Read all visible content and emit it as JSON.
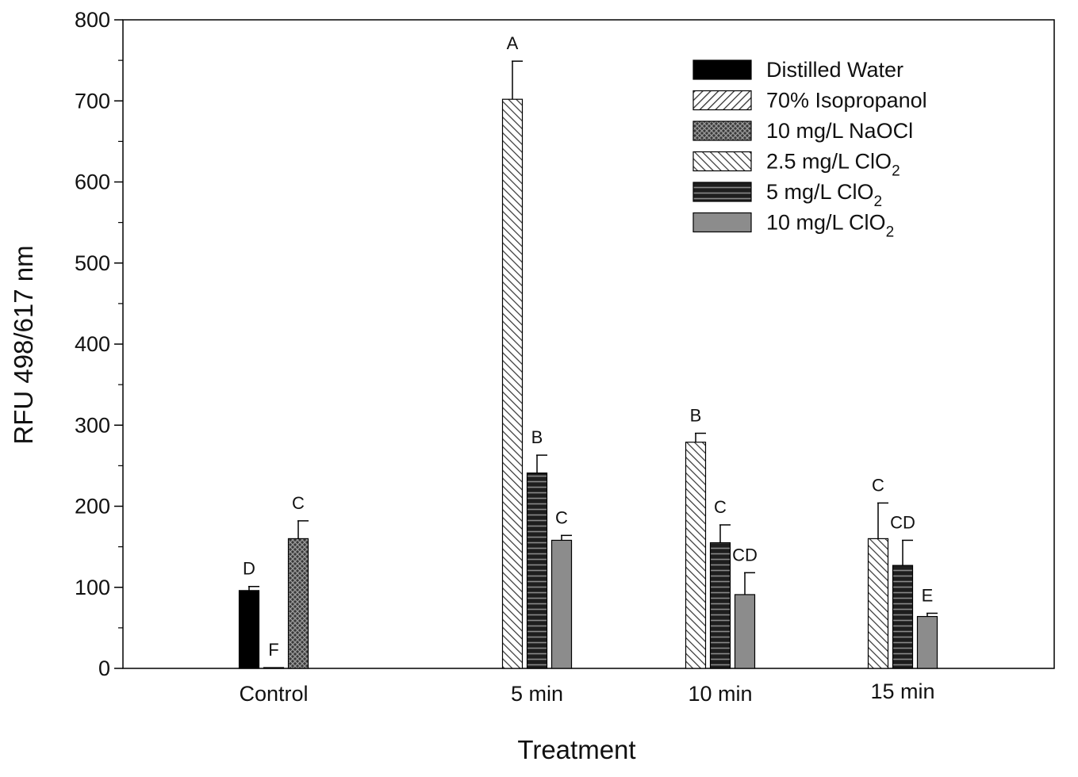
{
  "chart_data": {
    "type": "bar",
    "xlabel": "Treatment",
    "ylabel": "RFU 498/617 nm",
    "ylim": [
      0,
      800
    ],
    "yticks": [
      0,
      100,
      200,
      300,
      400,
      500,
      600,
      700,
      800
    ],
    "grid": false,
    "legend_position": "top-right",
    "categories": [
      "Control",
      "5 min",
      "10 min",
      "15 min"
    ],
    "series": [
      {
        "name": "Distilled Water",
        "legend_main": "Distilled Water",
        "legend_sub": "",
        "pattern": "solid-black",
        "values": [
          96,
          null,
          null,
          null
        ],
        "errors": [
          5,
          null,
          null,
          null
        ],
        "letters": [
          "D",
          null,
          null,
          null
        ]
      },
      {
        "name": "70% Isopropanol",
        "legend_main": "70% Isopropanol",
        "legend_sub": "",
        "pattern": "diag-fwd",
        "values": [
          1,
          null,
          null,
          null
        ],
        "errors": [
          0,
          null,
          null,
          null
        ],
        "letters": [
          "F",
          null,
          null,
          null
        ]
      },
      {
        "name": "10 mg/L NaOCl",
        "legend_main": "10 mg/L NaOCl",
        "legend_sub": "",
        "pattern": "crosshatch",
        "values": [
          160,
          null,
          null,
          null
        ],
        "errors": [
          22,
          null,
          null,
          null
        ],
        "letters": [
          "C",
          null,
          null,
          null
        ]
      },
      {
        "name": "2.5 mg/L ClO2",
        "legend_main": "2.5 mg/L ClO",
        "legend_sub": "2",
        "pattern": "diag-back",
        "values": [
          null,
          702,
          279,
          160
        ],
        "errors": [
          null,
          47,
          11,
          44
        ],
        "letters": [
          null,
          "A",
          "B",
          "C"
        ]
      },
      {
        "name": "5 mg/L ClO2",
        "legend_main": "5 mg/L ClO",
        "legend_sub": "2",
        "pattern": "horizontal",
        "values": [
          null,
          241,
          155,
          127
        ],
        "errors": [
          null,
          22,
          22,
          31
        ],
        "letters": [
          null,
          "B",
          "C",
          "CD"
        ]
      },
      {
        "name": "10 mg/L ClO2",
        "legend_main": "10 mg/L ClO",
        "legend_sub": "2",
        "pattern": "solid-gray",
        "values": [
          null,
          158,
          91,
          64
        ],
        "errors": [
          null,
          6,
          27,
          4
        ],
        "letters": [
          null,
          "C",
          "CD",
          "E"
        ]
      }
    ]
  },
  "colors": {
    "black": "#000000",
    "gray_fill": "#8c8c8c",
    "dark_fill": "#2a2a2a",
    "hatch_line": "#333333"
  }
}
